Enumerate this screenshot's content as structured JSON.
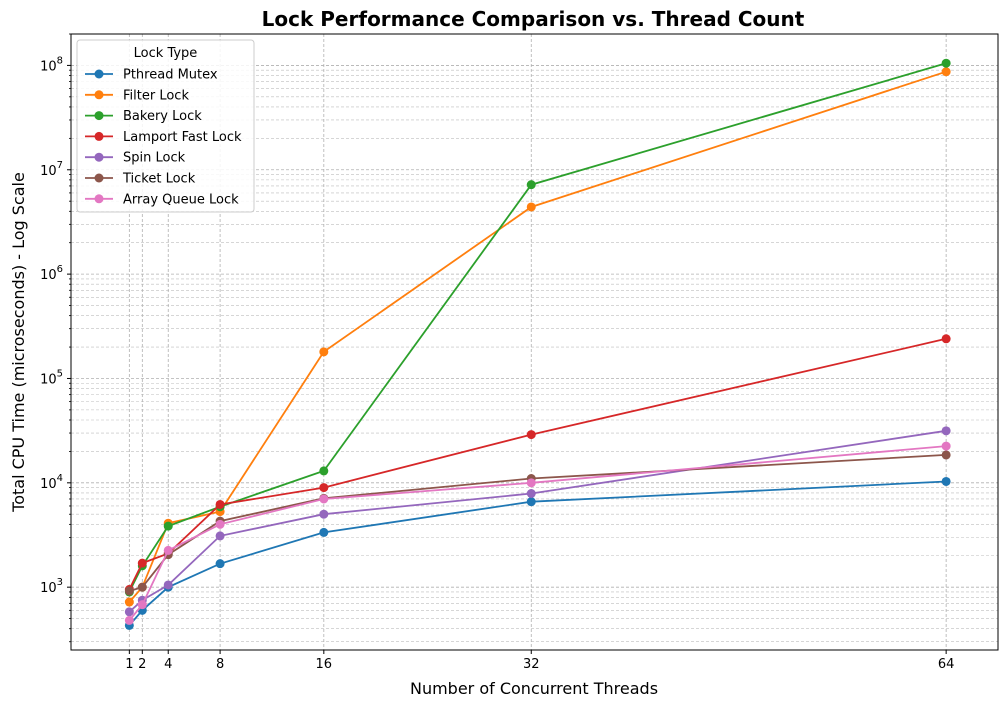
{
  "chart_data": {
    "type": "line",
    "title": "Lock Performance Comparison vs. Thread Count",
    "xlabel": "Number of Concurrent Threads",
    "ylabel": "Total CPU Time (microseconds) - Log Scale",
    "x": [
      1,
      2,
      4,
      8,
      16,
      32,
      64
    ],
    "x_ticks": [
      1,
      2,
      4,
      8,
      16,
      32,
      64
    ],
    "xlim": [
      -3.5,
      68
    ],
    "y_scale": "log",
    "ylim": [
      250,
      200000000
    ],
    "y_ticks": [
      {
        "value": 1000,
        "base": "10",
        "exp": "3"
      },
      {
        "value": 10000,
        "base": "10",
        "exp": "4"
      },
      {
        "value": 100000,
        "base": "10",
        "exp": "5"
      },
      {
        "value": 1000000,
        "base": "10",
        "exp": "6"
      },
      {
        "value": 10000000,
        "base": "10",
        "exp": "7"
      },
      {
        "value": 100000000,
        "base": "10",
        "exp": "8"
      }
    ],
    "grid": true,
    "legend_title": "Lock Type",
    "legend_position": "top-left",
    "series": [
      {
        "name": "Pthread Mutex",
        "color": "#1f77b4",
        "values": [
          430,
          600,
          1000,
          1680,
          3350,
          6600,
          10300
        ]
      },
      {
        "name": "Filter Lock",
        "color": "#ff7f0e",
        "values": [
          720,
          1000,
          4100,
          5300,
          180000,
          4400000,
          87000000
        ]
      },
      {
        "name": "Bakery Lock",
        "color": "#2ca02c",
        "values": [
          900,
          1600,
          3850,
          5900,
          13000,
          7200000,
          105000000
        ]
      },
      {
        "name": "Lamport Fast Lock",
        "color": "#d62728",
        "values": [
          950,
          1700,
          2100,
          6200,
          9000,
          29000,
          240000
        ]
      },
      {
        "name": "Spin Lock",
        "color": "#9467bd",
        "values": [
          580,
          750,
          1050,
          3100,
          5000,
          7900,
          31500
        ]
      },
      {
        "name": "Ticket Lock",
        "color": "#8c564b",
        "values": [
          920,
          1000,
          2050,
          4300,
          7100,
          11000,
          18500
        ]
      },
      {
        "name": "Array Queue Lock",
        "color": "#e377c2",
        "values": [
          480,
          680,
          2250,
          4000,
          7000,
          10000,
          22500
        ]
      }
    ]
  }
}
